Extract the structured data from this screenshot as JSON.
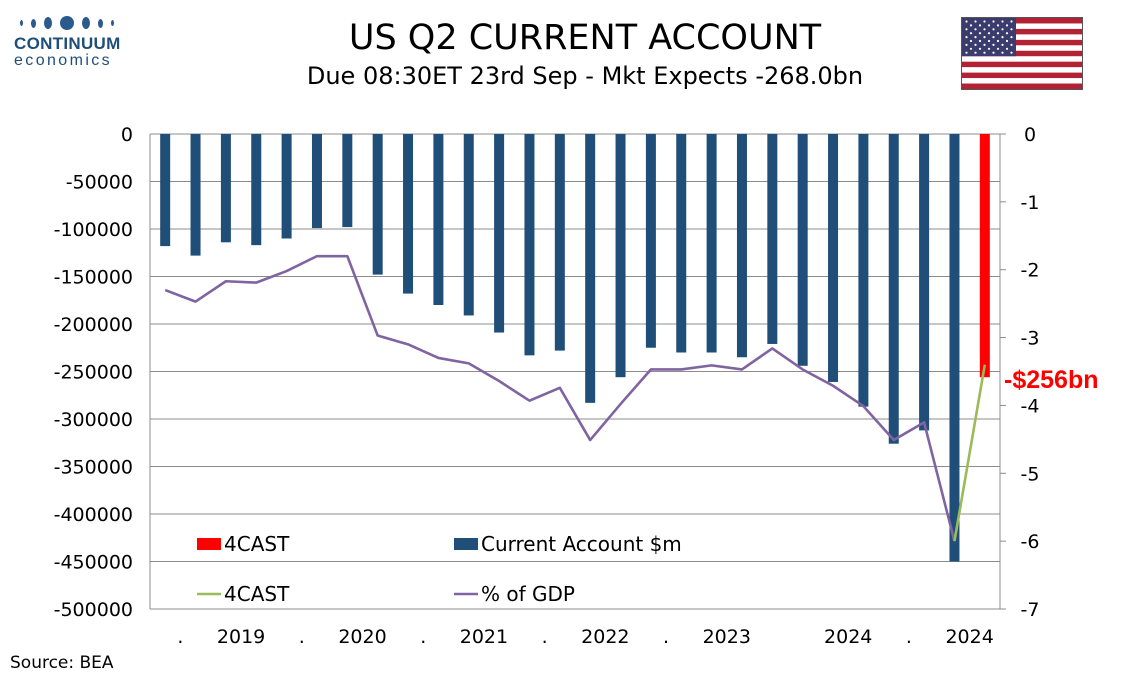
{
  "header": {
    "title": "US Q2  CURRENT ACCOUNT",
    "subtitle": "Due 08:30ET  23rd Sep - Mkt Expects -268.0bn"
  },
  "logo": {
    "name": "CONTINUUM",
    "sub": "economics"
  },
  "flag": {
    "icon": "us-flag-icon"
  },
  "footer": {
    "source": "Source: BEA"
  },
  "colors": {
    "bar_actual": "#1f4e79",
    "bar_forecast": "#ff0000",
    "line_gdp": "#8064a2",
    "line_forecast": "#9bbb59",
    "annotation": "#ff0000"
  },
  "chart_data": {
    "type": "bar",
    "x_tick_labels": [
      ".",
      "2019",
      ".",
      "2020",
      ".",
      "2021",
      ".",
      "2022",
      ".",
      "2023",
      "",
      "2024",
      ".",
      "2024"
    ],
    "y_left": {
      "min": -500000,
      "max": 0,
      "step": 50000,
      "ticks": [
        "0",
        "-50000",
        "-100000",
        "-150000",
        "-200000",
        "-250000",
        "-300000",
        "-350000",
        "-400000",
        "-450000",
        "-500000"
      ]
    },
    "y_right": {
      "min": -7,
      "max": 0,
      "step": 1,
      "ticks": [
        "0",
        "-1",
        "-2",
        "-3",
        "-4",
        "-5",
        "-6",
        "-7"
      ]
    },
    "grid": true,
    "legend": [
      {
        "label": "4CAST",
        "kind": "bar",
        "series": "forecast_bar"
      },
      {
        "label": "Current Account $m",
        "kind": "bar",
        "series": "current_account"
      },
      {
        "label": "4CAST",
        "kind": "line",
        "series": "forecast_line"
      },
      {
        "label": "% of GDP",
        "kind": "line",
        "series": "pct_gdp"
      }
    ],
    "series": [
      {
        "name": "Current Account $m",
        "axis": "left",
        "type": "bar",
        "values": [
          -118000,
          -128000,
          -114000,
          -117000,
          -110000,
          -99000,
          -98000,
          -148000,
          -168000,
          -180000,
          -191000,
          -209000,
          -233000,
          -228000,
          -283000,
          -256000,
          -225000,
          -230000,
          -230000,
          -235000,
          -221000,
          -244000,
          -261000,
          -287000,
          -326000,
          -312000,
          -450000,
          null
        ]
      },
      {
        "name": "4CAST",
        "axis": "left",
        "type": "bar",
        "values": [
          null,
          null,
          null,
          null,
          null,
          null,
          null,
          null,
          null,
          null,
          null,
          null,
          null,
          null,
          null,
          null,
          null,
          null,
          null,
          null,
          null,
          null,
          null,
          null,
          null,
          null,
          null,
          -256000
        ]
      },
      {
        "name": "% of GDP",
        "axis": "right",
        "type": "line",
        "values": [
          -2.3,
          -2.47,
          -2.17,
          -2.19,
          -2.02,
          -1.8,
          -1.8,
          -2.97,
          -3.1,
          -3.3,
          -3.38,
          -3.64,
          -3.93,
          -3.74,
          -4.51,
          -3.98,
          -3.47,
          -3.47,
          -3.41,
          -3.47,
          -3.16,
          -3.47,
          -3.71,
          -4.01,
          -4.51,
          -4.25,
          -6.0,
          null
        ]
      },
      {
        "name": "4CAST",
        "axis": "right",
        "type": "line",
        "values": [
          null,
          null,
          null,
          null,
          null,
          null,
          null,
          null,
          null,
          null,
          null,
          null,
          null,
          null,
          null,
          null,
          null,
          null,
          null,
          null,
          null,
          null,
          null,
          null,
          null,
          null,
          -6.0,
          -3.4
        ]
      }
    ],
    "annotation": {
      "text": "-$256bn"
    }
  }
}
